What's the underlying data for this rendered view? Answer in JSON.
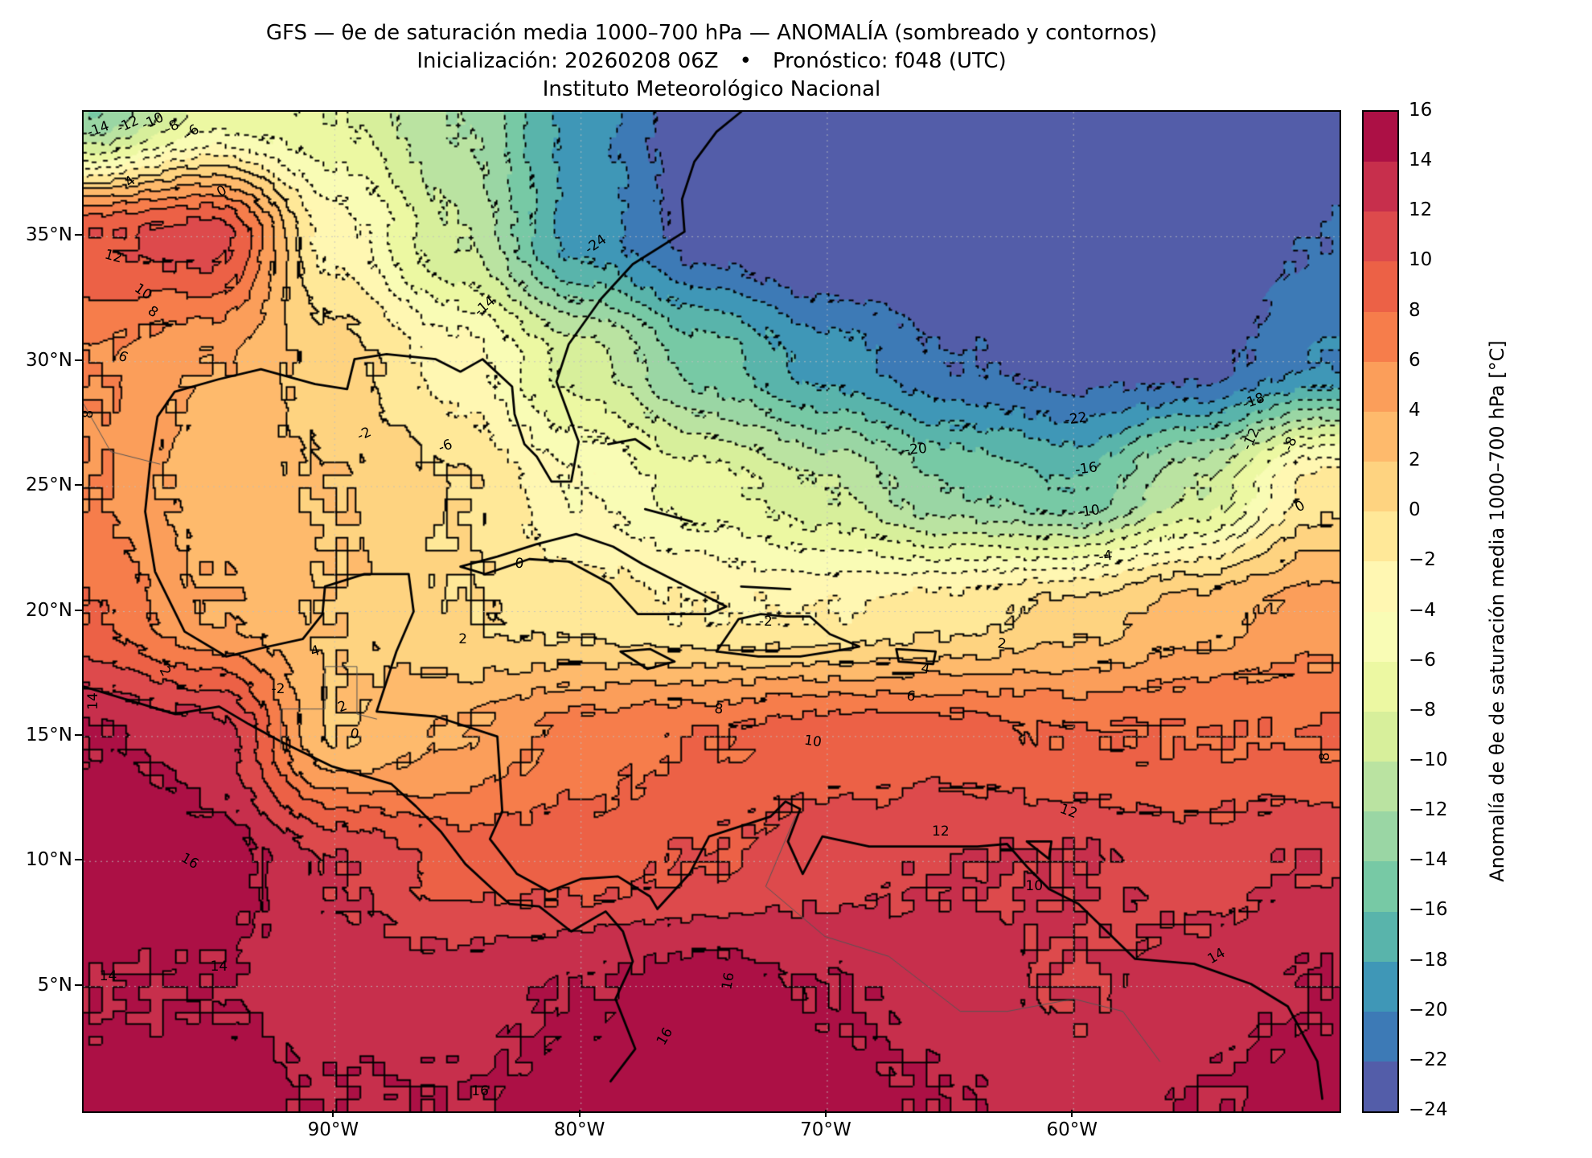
{
  "title": {
    "line1": "GFS — θe de saturación media 1000–700 hPa — ANOMALÍA (sombreado y contornos)",
    "line2": "Inicialización: 20260208 06Z  •  Pronóstico: f048 (UTC)",
    "line3": "Instituto Meteorológico Nacional"
  },
  "axes": {
    "x_ticks": [
      {
        "lon": -90,
        "label": "90°W"
      },
      {
        "lon": -80,
        "label": "80°W"
      },
      {
        "lon": -70,
        "label": "70°W"
      },
      {
        "lon": -60,
        "label": "60°W"
      }
    ],
    "y_ticks": [
      {
        "lat": 35,
        "label": "35°N"
      },
      {
        "lat": 30,
        "label": "30°N"
      },
      {
        "lat": 25,
        "label": "25°N"
      },
      {
        "lat": 20,
        "label": "20°N"
      },
      {
        "lat": 15,
        "label": "15°N"
      },
      {
        "lat": 10,
        "label": "10°N"
      },
      {
        "lat": 5,
        "label": "5°N"
      }
    ],
    "domain": {
      "lon_min": -100.2,
      "lon_max": -49.2,
      "lat_min": 0,
      "lat_max": 40
    }
  },
  "colorbar": {
    "label": "Anomalía de θe de saturación media 1000–700 hPa [°C]",
    "vmin": -24,
    "vmax": 16,
    "colors": [
      "#535da9",
      "#3d7ab6",
      "#3f97b7",
      "#59b4ab",
      "#77c9a5",
      "#9ad6a4",
      "#bae3a1",
      "#d7ef9b",
      "#ecf8a2",
      "#f9fcb5",
      "#fff7b2",
      "#ffe898",
      "#fed380",
      "#feba6c",
      "#fb9e5a",
      "#f67d4b",
      "#ec6146",
      "#dd4a4c",
      "#c72f4c",
      "#ac1045"
    ],
    "ticks": [
      {
        "v": 16,
        "label": "16"
      },
      {
        "v": 14,
        "label": "14"
      },
      {
        "v": 12,
        "label": "12"
      },
      {
        "v": 10,
        "label": "10"
      },
      {
        "v": 8,
        "label": "8"
      },
      {
        "v": 6,
        "label": "6"
      },
      {
        "v": 4,
        "label": "4"
      },
      {
        "v": 2,
        "label": "2"
      },
      {
        "v": 0,
        "label": "0"
      },
      {
        "v": -2,
        "label": "−2"
      },
      {
        "v": -4,
        "label": "−4"
      },
      {
        "v": -6,
        "label": "−6"
      },
      {
        "v": -8,
        "label": "−8"
      },
      {
        "v": -10,
        "label": "−10"
      },
      {
        "v": -12,
        "label": "−12"
      },
      {
        "v": -14,
        "label": "−14"
      },
      {
        "v": -16,
        "label": "−16"
      },
      {
        "v": -18,
        "label": "−18"
      },
      {
        "v": -20,
        "label": "−20"
      },
      {
        "v": -22,
        "label": "−22"
      },
      {
        "v": -24,
        "label": "−24"
      }
    ]
  },
  "chart_data": {
    "type": "heatmap",
    "variable": "Anomalía de θe de saturación media 1000–700 hPa",
    "units": "°C",
    "model": "GFS",
    "init": "20260208 06Z",
    "forecast": "f048 (UTC)",
    "institution": "Instituto Meteorológico Nacional",
    "contour_interval": 2,
    "value_range": [
      -24,
      16
    ],
    "negative_contours": "dotted",
    "positive_contours": "solid",
    "grid": {
      "lon": [
        -100,
        -95,
        -90,
        -85,
        -80,
        -75,
        -70,
        -65,
        -60,
        -55,
        -50
      ],
      "lat": [
        40,
        35,
        30,
        25,
        20,
        15,
        10,
        5,
        0
      ],
      "values": [
        [
          -14,
          -7,
          -8,
          -12,
          -19,
          -24,
          -26,
          -26,
          -26,
          -25,
          -24
        ],
        [
          10,
          11,
          -3,
          -10,
          -19,
          -23,
          -25,
          -25,
          -25,
          -24,
          -22
        ],
        [
          6,
          4,
          1,
          -3,
          -9,
          -15,
          -19,
          -22,
          -23,
          -23,
          -20
        ],
        [
          6,
          3,
          2,
          0,
          -4,
          -7,
          -10,
          -14,
          -16,
          -10,
          -1
        ],
        [
          8,
          4,
          2,
          0,
          -1,
          -2,
          -2,
          -1,
          1,
          3,
          5
        ],
        [
          14,
          13,
          2,
          4,
          7,
          8,
          9,
          9,
          8,
          8,
          8
        ],
        [
          16,
          15,
          12,
          9,
          9,
          10,
          11,
          12,
          12,
          11,
          12
        ],
        [
          14,
          14,
          13,
          13,
          14,
          15,
          14,
          13,
          12,
          13,
          14
        ],
        [
          15,
          15,
          14,
          14,
          15,
          16,
          15,
          14,
          13,
          14,
          15
        ]
      ]
    },
    "contour_labels": [
      {
        "t": "-14",
        "lon": -99.6,
        "lat": 39.3,
        "r": -20
      },
      {
        "t": "-12",
        "lon": -98.4,
        "lat": 39.5,
        "r": -25
      },
      {
        "t": "-10",
        "lon": -97.4,
        "lat": 39.6,
        "r": -25
      },
      {
        "t": "-8",
        "lon": -96.6,
        "lat": 39.4,
        "r": -30
      },
      {
        "t": "-6",
        "lon": -95.8,
        "lat": 39.2,
        "r": -35
      },
      {
        "t": "4",
        "lon": -98.3,
        "lat": 37.2,
        "r": -40
      },
      {
        "t": "0",
        "lon": -94.6,
        "lat": 36.8,
        "r": -30
      },
      {
        "t": "12",
        "lon": -99.0,
        "lat": 34.2,
        "r": 15
      },
      {
        "t": "10",
        "lon": -97.8,
        "lat": 32.8,
        "r": 35
      },
      {
        "t": "8",
        "lon": -97.4,
        "lat": 32.0,
        "r": 35
      },
      {
        "t": "6",
        "lon": -98.6,
        "lat": 30.2,
        "r": 25
      },
      {
        "t": "8",
        "lon": -100.0,
        "lat": 27.9,
        "r": -85
      },
      {
        "t": "-2",
        "lon": -88.8,
        "lat": 27.1,
        "r": -25
      },
      {
        "t": "-6",
        "lon": -85.5,
        "lat": 26.6,
        "r": -20
      },
      {
        "t": "-14",
        "lon": -83.9,
        "lat": 32.2,
        "r": -40
      },
      {
        "t": "-24",
        "lon": -79.4,
        "lat": 34.7,
        "r": -35
      },
      {
        "t": "-22",
        "lon": -59.9,
        "lat": 27.7,
        "r": -8
      },
      {
        "t": "-20",
        "lon": -66.4,
        "lat": 26.5,
        "r": -5
      },
      {
        "t": "-18",
        "lon": -52.7,
        "lat": 28.4,
        "r": -20
      },
      {
        "t": "-16",
        "lon": -59.5,
        "lat": 25.7,
        "r": -8
      },
      {
        "t": "-12",
        "lon": -52.8,
        "lat": 26.9,
        "r": -65
      },
      {
        "t": "-10",
        "lon": -59.4,
        "lat": 24.0,
        "r": -8
      },
      {
        "t": "-8",
        "lon": -51.2,
        "lat": 26.7,
        "r": -65
      },
      {
        "t": "-4",
        "lon": -58.7,
        "lat": 22.2,
        "r": -8
      },
      {
        "t": "0",
        "lon": -50.8,
        "lat": 24.2,
        "r": -30
      },
      {
        "t": "0",
        "lon": -82.5,
        "lat": 21.9,
        "r": 5
      },
      {
        "t": "-2",
        "lon": -72.5,
        "lat": 19.6,
        "r": 0
      },
      {
        "t": "2",
        "lon": -84.8,
        "lat": 18.9,
        "r": 0
      },
      {
        "t": "2",
        "lon": -62.9,
        "lat": 18.7,
        "r": 8
      },
      {
        "t": "4",
        "lon": -66.0,
        "lat": 17.7,
        "r": 10
      },
      {
        "t": "6",
        "lon": -66.6,
        "lat": 16.6,
        "r": 8
      },
      {
        "t": "8",
        "lon": -74.4,
        "lat": 16.1,
        "r": 5
      },
      {
        "t": "10",
        "lon": -70.6,
        "lat": 14.8,
        "r": 8
      },
      {
        "t": "12",
        "lon": -60.2,
        "lat": 12.0,
        "r": 20
      },
      {
        "t": "12",
        "lon": -65.4,
        "lat": 11.2,
        "r": 0
      },
      {
        "t": "0",
        "lon": -89.2,
        "lat": 15.1,
        "r": 10
      },
      {
        "t": "2",
        "lon": -89.7,
        "lat": 16.2,
        "r": -20
      },
      {
        "t": "4",
        "lon": -90.8,
        "lat": 18.4,
        "r": -15
      },
      {
        "t": "2",
        "lon": -96.9,
        "lat": 17.6,
        "r": 60
      },
      {
        "t": "-2",
        "lon": -92.3,
        "lat": 16.9,
        "r": 0
      },
      {
        "t": "16",
        "lon": -95.9,
        "lat": 10.0,
        "r": 30
      },
      {
        "t": "14",
        "lon": -99.2,
        "lat": 5.4,
        "r": 0
      },
      {
        "t": "14",
        "lon": -94.7,
        "lat": 5.8,
        "r": 0
      },
      {
        "t": "16",
        "lon": -84.1,
        "lat": 0.8,
        "r": 0
      },
      {
        "t": "16",
        "lon": -76.6,
        "lat": 3.0,
        "r": -60
      },
      {
        "t": "16",
        "lon": -74.0,
        "lat": 5.2,
        "r": -80
      },
      {
        "t": "14",
        "lon": -54.2,
        "lat": 6.2,
        "r": -30
      },
      {
        "t": "8",
        "lon": -49.8,
        "lat": 14.2,
        "r": -90
      },
      {
        "t": "14",
        "lon": -99.8,
        "lat": 16.4,
        "r": -90
      },
      {
        "t": "10",
        "lon": -61.6,
        "lat": 9.0,
        "r": 0
      }
    ],
    "coastlines": [
      [
        [
          -97.5,
          25.9
        ],
        [
          -97.2,
          27.8
        ],
        [
          -96.5,
          28.8
        ],
        [
          -94.7,
          29.3
        ],
        [
          -93.0,
          29.7
        ],
        [
          -90.8,
          29.1
        ],
        [
          -89.5,
          28.9
        ],
        [
          -89.2,
          30.1
        ],
        [
          -87.9,
          30.3
        ],
        [
          -85.9,
          30.1
        ],
        [
          -84.9,
          29.6
        ],
        [
          -84.0,
          30.1
        ],
        [
          -82.8,
          29.0
        ],
        [
          -82.7,
          27.9
        ],
        [
          -82.3,
          26.7
        ],
        [
          -81.8,
          26.2
        ],
        [
          -81.2,
          25.2
        ],
        [
          -80.4,
          25.2
        ],
        [
          -80.1,
          26.8
        ],
        [
          -81.0,
          29.2
        ],
        [
          -80.5,
          30.7
        ],
        [
          -79.2,
          32.5
        ],
        [
          -77.9,
          33.9
        ],
        [
          -75.8,
          35.2
        ],
        [
          -75.9,
          36.5
        ],
        [
          -75.4,
          38.0
        ],
        [
          -74.5,
          39.2
        ],
        [
          -73.5,
          40.0
        ]
      ],
      [
        [
          -97.5,
          25.9
        ],
        [
          -97.7,
          24.0
        ],
        [
          -97.3,
          21.6
        ],
        [
          -96.1,
          19.2
        ],
        [
          -94.4,
          18.2
        ],
        [
          -92.7,
          18.6
        ],
        [
          -91.3,
          18.9
        ],
        [
          -90.5,
          19.9
        ],
        [
          -90.4,
          21.0
        ],
        [
          -88.8,
          21.5
        ],
        [
          -87.0,
          21.5
        ],
        [
          -86.8,
          20.0
        ],
        [
          -87.5,
          18.4
        ],
        [
          -88.3,
          16.0
        ],
        [
          -85.9,
          15.8
        ],
        [
          -83.4,
          15.0
        ],
        [
          -83.2,
          12.0
        ],
        [
          -83.7,
          10.9
        ],
        [
          -82.6,
          9.5
        ],
        [
          -81.3,
          8.8
        ],
        [
          -80.0,
          9.3
        ],
        [
          -78.5,
          9.4
        ],
        [
          -77.2,
          8.6
        ],
        [
          -76.9,
          8.1
        ]
      ],
      [
        [
          -100.2,
          17.0
        ],
        [
          -96.5,
          15.9
        ],
        [
          -94.7,
          16.2
        ],
        [
          -93.5,
          15.5
        ],
        [
          -92.2,
          14.8
        ],
        [
          -90.1,
          13.8
        ],
        [
          -87.7,
          13.1
        ],
        [
          -86.7,
          12.2
        ],
        [
          -85.7,
          11.2
        ],
        [
          -84.7,
          9.9
        ],
        [
          -83.6,
          8.9
        ],
        [
          -82.9,
          8.3
        ],
        [
          -81.7,
          8.2
        ],
        [
          -80.4,
          7.2
        ],
        [
          -79.0,
          8.0
        ],
        [
          -78.3,
          7.2
        ],
        [
          -77.9,
          6.0
        ],
        [
          -78.6,
          4.5
        ],
        [
          -77.8,
          2.5
        ],
        [
          -78.8,
          1.2
        ]
      ],
      [
        [
          -76.9,
          8.1
        ],
        [
          -75.6,
          9.5
        ],
        [
          -74.8,
          11.0
        ],
        [
          -72.3,
          11.8
        ],
        [
          -71.7,
          12.4
        ],
        [
          -71.1,
          12.1
        ],
        [
          -71.6,
          10.8
        ],
        [
          -71.0,
          9.5
        ],
        [
          -70.2,
          11.0
        ],
        [
          -68.3,
          10.6
        ],
        [
          -66.1,
          10.6
        ],
        [
          -63.9,
          10.6
        ],
        [
          -62.7,
          10.7
        ],
        [
          -61.9,
          9.8
        ],
        [
          -61.0,
          8.9
        ],
        [
          -59.8,
          8.3
        ],
        [
          -57.5,
          6.1
        ],
        [
          -55.1,
          5.9
        ],
        [
          -52.8,
          5.1
        ],
        [
          -51.3,
          4.2
        ],
        [
          -50.1,
          2.0
        ],
        [
          -49.9,
          0.5
        ]
      ],
      [
        [
          -84.9,
          21.8
        ],
        [
          -83.4,
          22.2
        ],
        [
          -81.8,
          22.7
        ],
        [
          -80.2,
          23.1
        ],
        [
          -78.7,
          22.6
        ],
        [
          -77.5,
          21.9
        ],
        [
          -75.7,
          21.0
        ],
        [
          -74.1,
          20.2
        ],
        [
          -74.8,
          19.9
        ],
        [
          -76.3,
          19.9
        ],
        [
          -77.7,
          19.9
        ],
        [
          -78.8,
          21.1
        ],
        [
          -80.5,
          22.0
        ],
        [
          -82.1,
          22.1
        ],
        [
          -83.9,
          21.5
        ],
        [
          -84.9,
          21.8
        ]
      ],
      [
        [
          -74.5,
          18.4
        ],
        [
          -73.6,
          19.7
        ],
        [
          -72.7,
          19.9
        ],
        [
          -71.7,
          19.8
        ],
        [
          -70.7,
          19.8
        ],
        [
          -69.9,
          19.1
        ],
        [
          -68.7,
          18.6
        ],
        [
          -69.8,
          18.4
        ],
        [
          -71.1,
          18.2
        ],
        [
          -72.8,
          18.2
        ],
        [
          -74.5,
          18.4
        ]
      ],
      [
        [
          -78.4,
          18.4
        ],
        [
          -77.2,
          18.5
        ],
        [
          -76.2,
          18.0
        ],
        [
          -77.3,
          17.7
        ],
        [
          -78.4,
          18.4
        ]
      ],
      [
        [
          -67.2,
          18.5
        ],
        [
          -65.6,
          18.4
        ],
        [
          -65.7,
          17.9
        ],
        [
          -67.1,
          18.0
        ],
        [
          -67.2,
          18.5
        ]
      ],
      [
        [
          -78.9,
          26.7
        ],
        [
          -77.8,
          26.9
        ],
        [
          -77.2,
          26.5
        ]
      ],
      [
        [
          -77.4,
          24.1
        ],
        [
          -75.5,
          23.6
        ]
      ],
      [
        [
          -73.5,
          21.0
        ],
        [
          -71.5,
          20.9
        ]
      ],
      [
        [
          -61.9,
          10.8
        ],
        [
          -60.9,
          10.8
        ],
        [
          -61.0,
          10.1
        ],
        [
          -61.9,
          10.8
        ]
      ]
    ],
    "borders": [
      [
        [
          -92.2,
          14.5
        ],
        [
          -92.2,
          16.1
        ],
        [
          -91.0,
          16.1
        ],
        [
          -90.4,
          16.1
        ],
        [
          -90.4,
          17.8
        ],
        [
          -89.1,
          17.8
        ],
        [
          -89.1,
          15.9
        ],
        [
          -88.3,
          15.7
        ]
      ],
      [
        [
          -97.1,
          25.9
        ],
        [
          -99.1,
          26.4
        ],
        [
          -101.0,
          29.7
        ]
      ],
      [
        [
          -71.3,
          11.8
        ],
        [
          -72.5,
          9.0
        ],
        [
          -70.1,
          7.0
        ],
        [
          -67.5,
          6.2
        ],
        [
          -64.6,
          4.0
        ],
        [
          -62.7,
          4.0
        ],
        [
          -60.0,
          4.5
        ],
        [
          -58.0,
          4.0
        ],
        [
          -56.5,
          2.0
        ]
      ]
    ]
  }
}
